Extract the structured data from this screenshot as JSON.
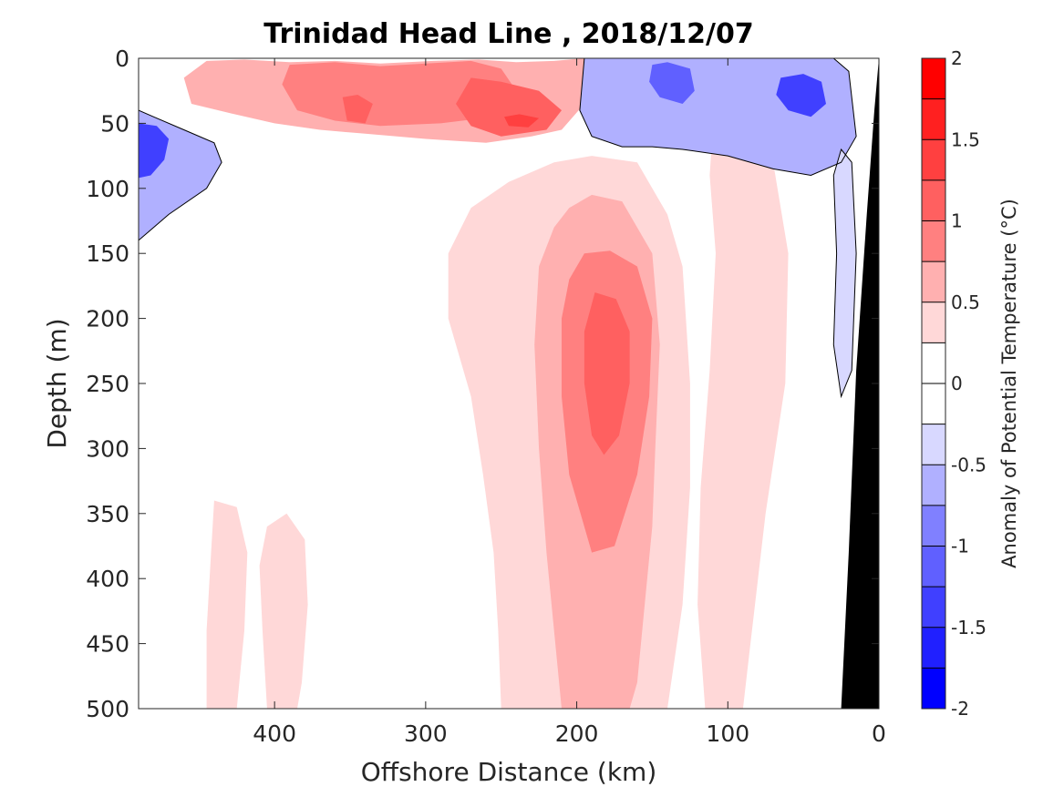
{
  "chart_data": {
    "type": "heatmap",
    "title": "Trinidad Head Line , 2018/12/07",
    "xlabel": "Offshore Distance (km)",
    "ylabel": "Depth (m)",
    "colorbar_label": "Anomaly of Potential Temperature (°C)",
    "xlim": [
      490,
      0
    ],
    "ylim": [
      0,
      500
    ],
    "x_ticks": [
      400,
      300,
      200,
      100,
      0
    ],
    "y_ticks": [
      0,
      50,
      100,
      150,
      200,
      250,
      300,
      350,
      400,
      450,
      500
    ],
    "clim": [
      -2,
      2
    ],
    "colorbar_ticks": [
      2,
      1.5,
      1,
      0.5,
      0,
      -0.5,
      -1,
      -1.5,
      -2
    ],
    "contour_interval": 0.25,
    "colormap": {
      "levels": [
        {
          "min": 1.75,
          "max": 2.0,
          "color": "#ff0000"
        },
        {
          "min": 1.5,
          "max": 1.75,
          "color": "#ff2020"
        },
        {
          "min": 1.25,
          "max": 1.5,
          "color": "#ff4040"
        },
        {
          "min": 1.0,
          "max": 1.25,
          "color": "#ff6060"
        },
        {
          "min": 0.75,
          "max": 1.0,
          "color": "#ff8080"
        },
        {
          "min": 0.5,
          "max": 0.75,
          "color": "#ffb0b0"
        },
        {
          "min": 0.25,
          "max": 0.5,
          "color": "#ffd8d8"
        },
        {
          "min": 0.0,
          "max": 0.25,
          "color": "#ffffff"
        },
        {
          "min": -0.25,
          "max": 0.0,
          "color": "#ffffff"
        },
        {
          "min": -0.5,
          "max": -0.25,
          "color": "#d8d8ff"
        },
        {
          "min": -0.75,
          "max": -0.5,
          "color": "#b0b0ff"
        },
        {
          "min": -1.0,
          "max": -0.75,
          "color": "#8080ff"
        },
        {
          "min": -1.25,
          "max": -1.0,
          "color": "#6060ff"
        },
        {
          "min": -1.5,
          "max": -1.25,
          "color": "#4040ff"
        },
        {
          "min": -1.75,
          "max": -1.5,
          "color": "#2020ff"
        },
        {
          "min": -2.0,
          "max": -1.75,
          "color": "#0000ff"
        }
      ]
    },
    "features": [
      {
        "name": "surface-warm-band",
        "anomaly": 0.6,
        "polygon": [
          [
            445,
            2
          ],
          [
            420,
            1
          ],
          [
            390,
            3
          ],
          [
            360,
            2
          ],
          [
            330,
            4
          ],
          [
            295,
            2
          ],
          [
            265,
            1
          ],
          [
            240,
            3
          ],
          [
            215,
            2
          ],
          [
            195,
            0
          ],
          [
            185,
            10
          ],
          [
            195,
            35
          ],
          [
            210,
            55
          ],
          [
            230,
            60
          ],
          [
            260,
            65
          ],
          [
            300,
            62
          ],
          [
            340,
            58
          ],
          [
            370,
            55
          ],
          [
            400,
            50
          ],
          [
            430,
            42
          ],
          [
            455,
            35
          ],
          [
            460,
            15
          ]
        ]
      },
      {
        "name": "surface-warm-core-1",
        "anomaly": 0.9,
        "polygon": [
          [
            390,
            5
          ],
          [
            360,
            3
          ],
          [
            330,
            6
          ],
          [
            300,
            4
          ],
          [
            270,
            2
          ],
          [
            250,
            8
          ],
          [
            240,
            25
          ],
          [
            255,
            45
          ],
          [
            290,
            50
          ],
          [
            330,
            52
          ],
          [
            360,
            48
          ],
          [
            385,
            40
          ],
          [
            395,
            20
          ]
        ]
      },
      {
        "name": "surface-warm-core-2",
        "anomaly": 1.15,
        "polygon": [
          [
            270,
            15
          ],
          [
            250,
            18
          ],
          [
            225,
            25
          ],
          [
            210,
            40
          ],
          [
            220,
            55
          ],
          [
            250,
            60
          ],
          [
            270,
            52
          ],
          [
            280,
            35
          ]
        ]
      },
      {
        "name": "surface-warm-core-3",
        "anomaly": 1.4,
        "polygon": [
          [
            248,
            45
          ],
          [
            238,
            43
          ],
          [
            225,
            46
          ],
          [
            232,
            53
          ],
          [
            245,
            52
          ]
        ]
      },
      {
        "name": "surface-warm-core-4",
        "anomaly": 1.15,
        "polygon": [
          [
            355,
            30
          ],
          [
            345,
            28
          ],
          [
            335,
            35
          ],
          [
            340,
            50
          ],
          [
            352,
            48
          ]
        ]
      },
      {
        "name": "deep-warm-column",
        "anomaly": 0.35,
        "polygon": [
          [
            245,
            95
          ],
          [
            215,
            80
          ],
          [
            190,
            75
          ],
          [
            160,
            80
          ],
          [
            140,
            120
          ],
          [
            130,
            160
          ],
          [
            125,
            250
          ],
          [
            125,
            330
          ],
          [
            130,
            420
          ],
          [
            140,
            500
          ],
          [
            250,
            500
          ],
          [
            252,
            440
          ],
          [
            255,
            380
          ],
          [
            262,
            320
          ],
          [
            270,
            260
          ],
          [
            285,
            200
          ],
          [
            285,
            150
          ],
          [
            270,
            115
          ]
        ]
      },
      {
        "name": "deep-warm-mid",
        "anomaly": 0.6,
        "polygon": [
          [
            205,
            115
          ],
          [
            190,
            105
          ],
          [
            170,
            110
          ],
          [
            150,
            150
          ],
          [
            145,
            220
          ],
          [
            148,
            300
          ],
          [
            150,
            360
          ],
          [
            155,
            420
          ],
          [
            160,
            480
          ],
          [
            165,
            500
          ],
          [
            210,
            500
          ],
          [
            215,
            440
          ],
          [
            220,
            380
          ],
          [
            225,
            300
          ],
          [
            228,
            220
          ],
          [
            225,
            160
          ],
          [
            215,
            130
          ]
        ]
      },
      {
        "name": "deep-warm-core",
        "anomaly": 0.85,
        "polygon": [
          [
            195,
            150
          ],
          [
            178,
            148
          ],
          [
            160,
            160
          ],
          [
            150,
            200
          ],
          [
            152,
            260
          ],
          [
            160,
            320
          ],
          [
            175,
            375
          ],
          [
            190,
            380
          ],
          [
            205,
            320
          ],
          [
            210,
            260
          ],
          [
            210,
            200
          ],
          [
            205,
            170
          ]
        ]
      },
      {
        "name": "deep-warm-peak",
        "anomaly": 1.1,
        "polygon": [
          [
            188,
            180
          ],
          [
            174,
            185
          ],
          [
            165,
            210
          ],
          [
            165,
            250
          ],
          [
            172,
            290
          ],
          [
            182,
            305
          ],
          [
            190,
            290
          ],
          [
            195,
            250
          ],
          [
            195,
            210
          ]
        ]
      },
      {
        "name": "offshore-warm-strip-1",
        "anomaly": 0.35,
        "polygon": [
          [
            440,
            340
          ],
          [
            425,
            345
          ],
          [
            418,
            380
          ],
          [
            420,
            440
          ],
          [
            425,
            500
          ],
          [
            445,
            500
          ],
          [
            445,
            440
          ],
          [
            442,
            380
          ]
        ]
      },
      {
        "name": "offshore-warm-strip-2",
        "anomaly": 0.35,
        "polygon": [
          [
            405,
            360
          ],
          [
            392,
            350
          ],
          [
            380,
            370
          ],
          [
            378,
            420
          ],
          [
            382,
            480
          ],
          [
            385,
            500
          ],
          [
            405,
            500
          ],
          [
            408,
            440
          ],
          [
            410,
            390
          ]
        ]
      },
      {
        "name": "nearshore-warm",
        "anomaly": 0.35,
        "polygon": [
          [
            110,
            55
          ],
          [
            90,
            60
          ],
          [
            70,
            80
          ],
          [
            60,
            150
          ],
          [
            62,
            250
          ],
          [
            75,
            350
          ],
          [
            85,
            450
          ],
          [
            90,
            500
          ],
          [
            115,
            500
          ],
          [
            120,
            420
          ],
          [
            118,
            330
          ],
          [
            112,
            240
          ],
          [
            108,
            150
          ],
          [
            112,
            90
          ]
        ]
      },
      {
        "name": "offshore-cool-patch",
        "anomaly": -0.6,
        "polygon": [
          [
            490,
            40
          ],
          [
            480,
            45
          ],
          [
            460,
            55
          ],
          [
            440,
            65
          ],
          [
            435,
            80
          ],
          [
            445,
            100
          ],
          [
            470,
            120
          ],
          [
            490,
            140
          ]
        ]
      },
      {
        "name": "offshore-cool-core",
        "anomaly": -1.3,
        "polygon": [
          [
            490,
            50
          ],
          [
            478,
            52
          ],
          [
            470,
            62
          ],
          [
            473,
            78
          ],
          [
            482,
            90
          ],
          [
            490,
            92
          ]
        ]
      },
      {
        "name": "nearshore-cool-surface",
        "anomaly": -0.6,
        "polygon": [
          [
            195,
            0
          ],
          [
            165,
            0
          ],
          [
            135,
            0
          ],
          [
            105,
            0
          ],
          [
            75,
            0
          ],
          [
            50,
            0
          ],
          [
            30,
            0
          ],
          [
            20,
            10
          ],
          [
            15,
            60
          ],
          [
            25,
            80
          ],
          [
            45,
            90
          ],
          [
            70,
            85
          ],
          [
            100,
            75
          ],
          [
            130,
            70
          ],
          [
            150,
            68
          ],
          [
            170,
            68
          ],
          [
            190,
            60
          ],
          [
            198,
            40
          ]
        ]
      },
      {
        "name": "nearshore-cool-core-1",
        "anomaly": -1.1,
        "polygon": [
          [
            150,
            5
          ],
          [
            140,
            3
          ],
          [
            125,
            8
          ],
          [
            122,
            25
          ],
          [
            130,
            35
          ],
          [
            145,
            30
          ],
          [
            152,
            18
          ]
        ]
      },
      {
        "name": "nearshore-cool-core-2",
        "anomaly": -1.3,
        "polygon": [
          [
            65,
            15
          ],
          [
            50,
            12
          ],
          [
            38,
            18
          ],
          [
            35,
            35
          ],
          [
            45,
            45
          ],
          [
            60,
            40
          ],
          [
            68,
            28
          ]
        ]
      },
      {
        "name": "nearshore-cool-deep",
        "anomaly": -0.4,
        "polygon": [
          [
            25,
            70
          ],
          [
            18,
            80
          ],
          [
            15,
            150
          ],
          [
            18,
            240
          ],
          [
            25,
            260
          ],
          [
            30,
            220
          ],
          [
            28,
            150
          ],
          [
            30,
            90
          ]
        ]
      }
    ],
    "bathymetry": [
      [
        0,
        0
      ],
      [
        0,
        500
      ],
      [
        25,
        500
      ],
      [
        20,
        380
      ],
      [
        15,
        240
      ],
      [
        8,
        120
      ],
      [
        3,
        40
      ]
    ]
  }
}
